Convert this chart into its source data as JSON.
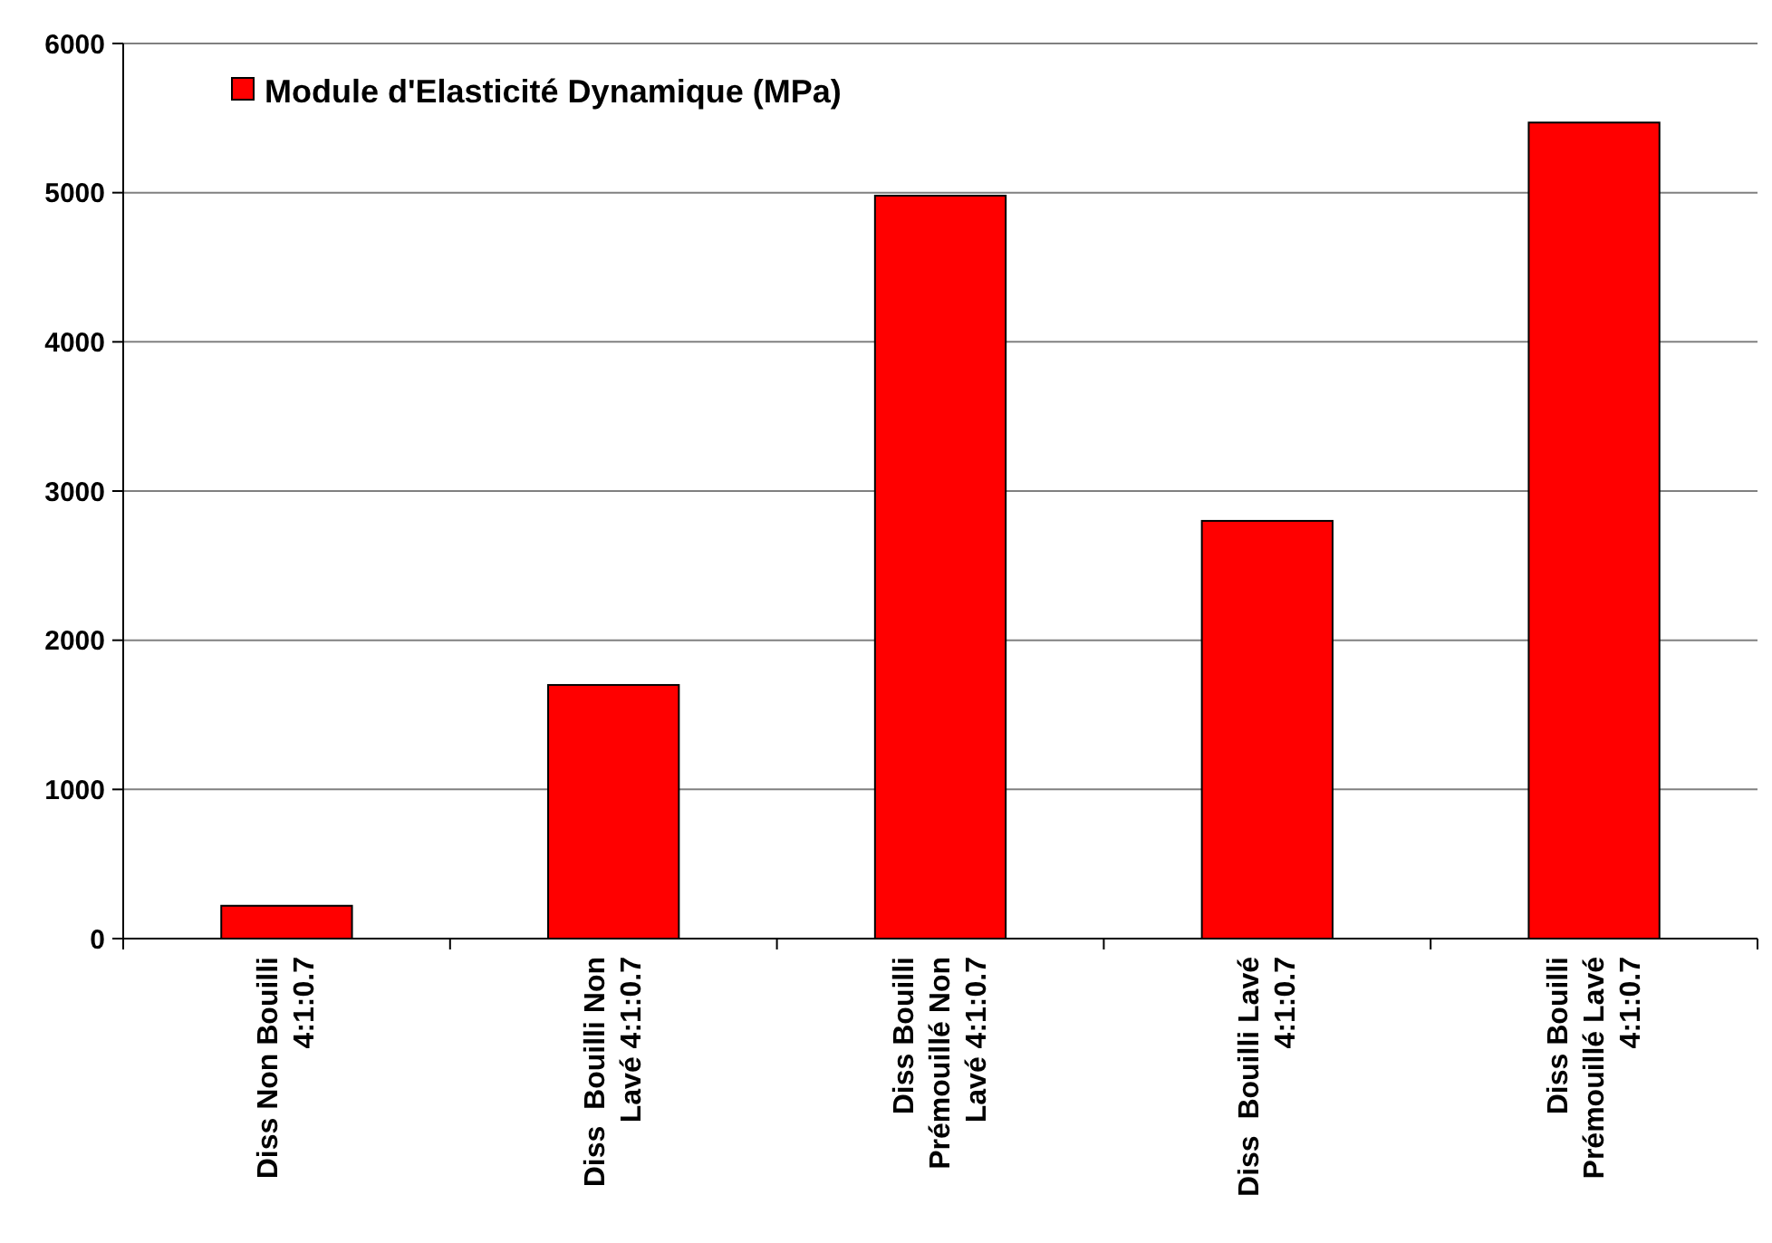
{
  "chart_data": {
    "type": "bar",
    "categories": [
      "Diss Non Bouilli 4:1:0.7",
      "Diss  Bouilli Non Lavé 4:1:0.7",
      "Diss Bouilli Prémouillé Non Lavé 4:1:0.7",
      "Diss  Bouilli Lavé 4:1:0.7",
      "Diss Bouilli Prémouillé Lavé 4:1:0.7"
    ],
    "series": [
      {
        "name": "Module d'Elasticité Dynamique (MPa)",
        "color": "#ff0000",
        "values": [
          220,
          1700,
          4980,
          2800,
          5470
        ]
      }
    ],
    "ylim": [
      0,
      6000
    ],
    "yticks": [
      0,
      1000,
      2000,
      3000,
      4000,
      5000,
      6000
    ],
    "grid": "y",
    "legend": "top left"
  }
}
